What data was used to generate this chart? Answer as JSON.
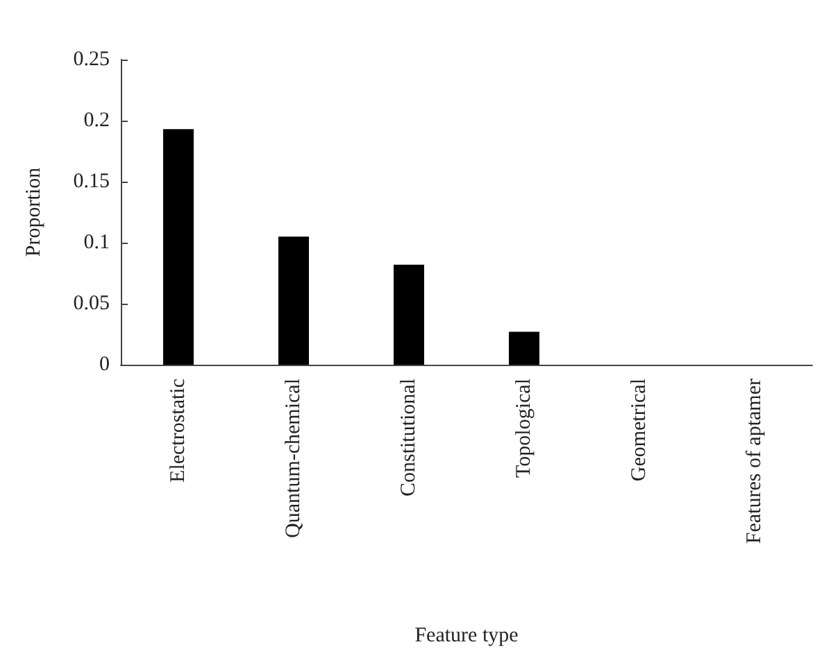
{
  "chart_data": {
    "type": "bar",
    "xlabel": "Feature type",
    "ylabel": "Proportion",
    "categories": [
      "Electrostatic",
      "Quantum-chemical",
      "Constitutional",
      "Topological",
      "Geometrical",
      "Features of aptamer"
    ],
    "values": [
      0.193,
      0.105,
      0.082,
      0.027,
      0,
      0
    ],
    "color": "#000000",
    "ylim": [
      0,
      0.25
    ],
    "yticks": [
      0,
      0.05,
      0.1,
      0.15,
      0.2,
      0.25
    ],
    "grid": false
  }
}
